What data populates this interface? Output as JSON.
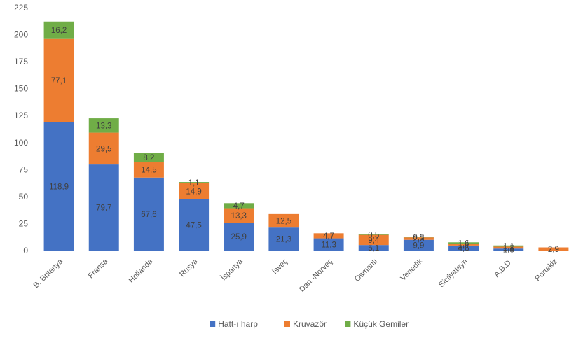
{
  "chart_data": {
    "type": "bar",
    "stacked": true,
    "title": "",
    "xlabel": "",
    "ylabel": "",
    "ylim": [
      0,
      225
    ],
    "yticks": [
      0,
      25,
      50,
      75,
      100,
      125,
      150,
      175,
      200,
      225
    ],
    "grid": false,
    "legend_position": "bottom",
    "categories": [
      "B. Britanya",
      "Fransa",
      "Hollanda",
      "Rusya",
      "İspanya",
      "İsveç",
      "Dan.-Norveç",
      "Osmanlı",
      "Venedik",
      "Sicilyateyn",
      "A.B.D.",
      "Portekiz"
    ],
    "series": [
      {
        "name": "Hatt-ı harp",
        "color": "#4472C4",
        "values": [
          118.9,
          79.7,
          67.6,
          47.5,
          25.9,
          21.3,
          11.3,
          5.1,
          9.9,
          4.6,
          1.8,
          0
        ],
        "labels": [
          "118,9",
          "79,7",
          "67,6",
          "47,5",
          "25,9",
          "21,3",
          "11,3",
          "5,1",
          "9,9",
          "4,6",
          "1,8",
          ""
        ]
      },
      {
        "name": "Kruvazör",
        "color": "#ED7D31",
        "values": [
          77.1,
          29.5,
          14.5,
          14.9,
          13.3,
          12.5,
          4.7,
          9.4,
          2.3,
          1.4,
          1.8,
          2.9
        ],
        "labels": [
          "77,1",
          "29,5",
          "14,5",
          "14,9",
          "13,3",
          "12,5",
          "4,7",
          "9,4",
          "2,3",
          "1,4",
          "1,8",
          "2,9"
        ]
      },
      {
        "name": "Küçük Gemiler",
        "color": "#70AD47",
        "values": [
          16.2,
          13.3,
          8.2,
          1.1,
          4.7,
          0,
          0,
          0.5,
          0.3,
          1.6,
          1.1,
          0
        ],
        "labels": [
          "16,2",
          "13,3",
          "8,2",
          "1,1",
          "4,7",
          "",
          "",
          "0,5",
          "0,3",
          "1,6",
          "1,1",
          ""
        ]
      }
    ]
  }
}
